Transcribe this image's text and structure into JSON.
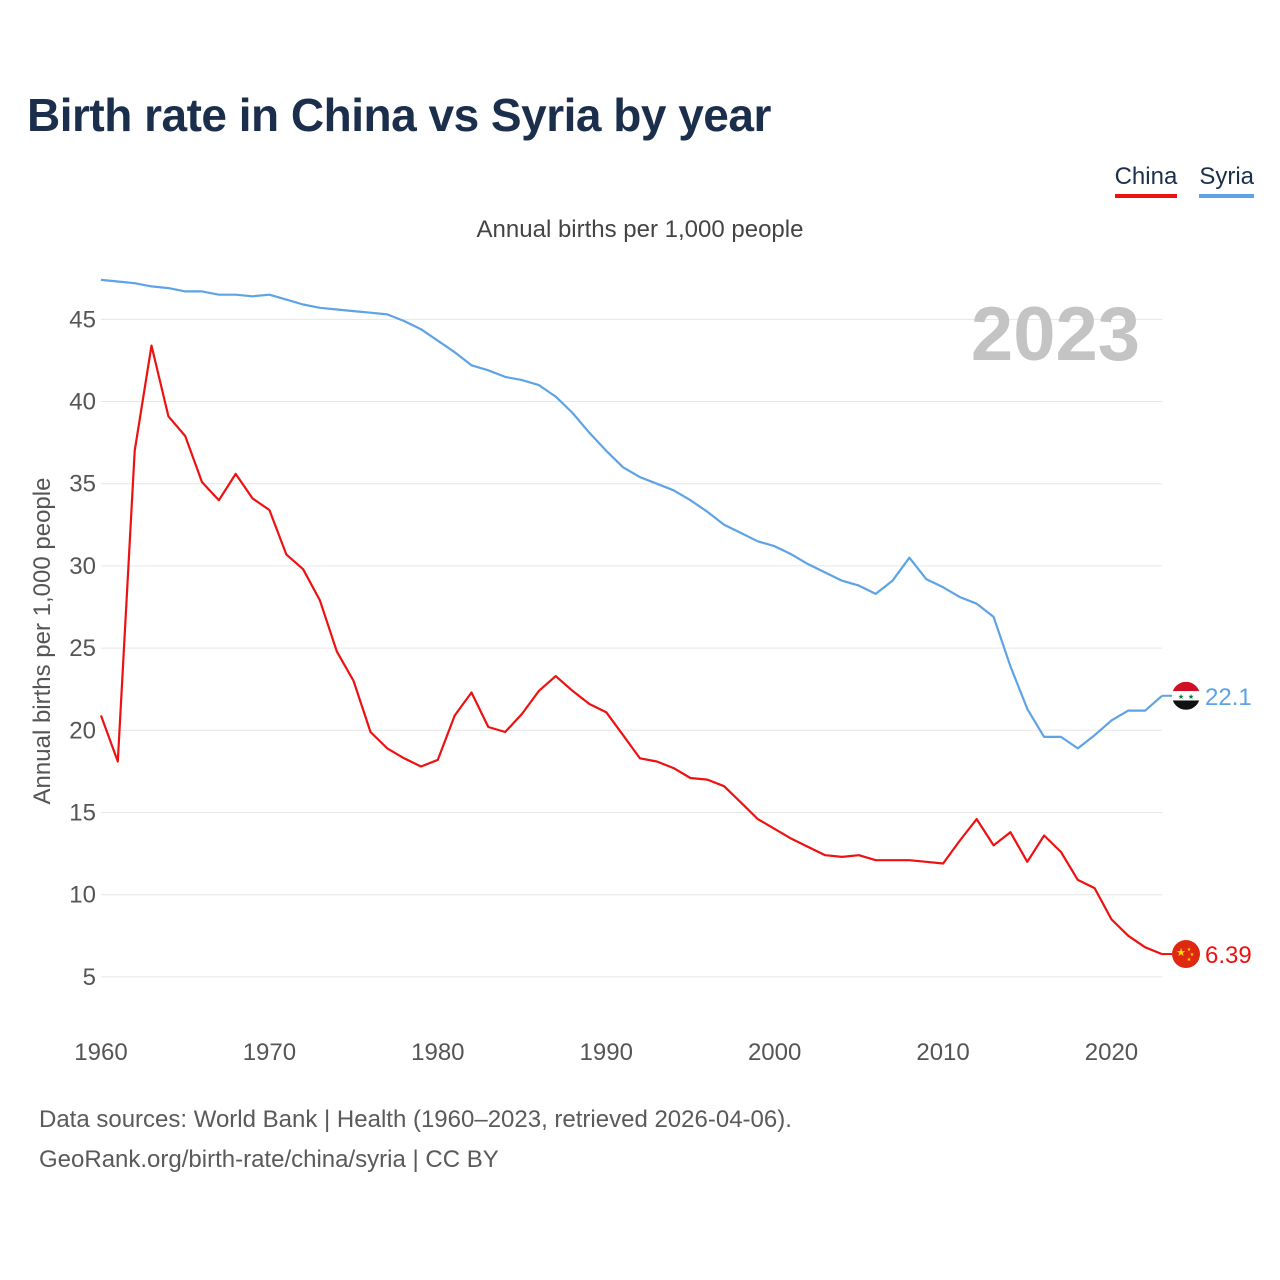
{
  "title": "Birth rate in China vs Syria by year",
  "subtitle": "Annual births per 1,000 people",
  "year_label": "2023",
  "legend": [
    {
      "name": "China",
      "color": "#ee1111"
    },
    {
      "name": "Syria",
      "color": "#5ea3e6"
    }
  ],
  "footer": {
    "line1": "Data sources: World Bank | Health (1960–2023, retrieved 2026-04-06).",
    "line2": "GeoRank.org/birth-rate/china/syria | CC BY"
  },
  "icons": {
    "china": "china-flag-icon",
    "syria": "syria-flag-icon"
  },
  "chart_data": {
    "type": "line",
    "title": "Birth rate in China vs Syria by year",
    "ylabel": "Annual births per 1,000 people",
    "xlabel": "",
    "xlim": [
      1960,
      2023
    ],
    "ylim": [
      2.5,
      48
    ],
    "x_ticks": [
      1960,
      1970,
      1980,
      1990,
      2000,
      2010,
      2020
    ],
    "y_ticks": [
      5,
      10,
      15,
      20,
      25,
      30,
      35,
      40,
      45
    ],
    "grid": true,
    "series": [
      {
        "name": "China",
        "color": "#ee1111",
        "end_label": "6.39",
        "x": [
          1960,
          1961,
          1962,
          1963,
          1964,
          1965,
          1966,
          1967,
          1968,
          1969,
          1970,
          1971,
          1972,
          1973,
          1974,
          1975,
          1976,
          1977,
          1978,
          1979,
          1980,
          1981,
          1982,
          1983,
          1984,
          1985,
          1986,
          1987,
          1988,
          1989,
          1990,
          1991,
          1992,
          1993,
          1994,
          1995,
          1996,
          1997,
          1998,
          1999,
          2000,
          2001,
          2002,
          2003,
          2004,
          2005,
          2006,
          2007,
          2008,
          2009,
          2010,
          2011,
          2012,
          2013,
          2014,
          2015,
          2016,
          2017,
          2018,
          2019,
          2020,
          2021,
          2022,
          2023
        ],
        "values": [
          20.9,
          18.1,
          37.0,
          43.4,
          39.1,
          37.9,
          35.1,
          34.0,
          35.6,
          34.1,
          33.4,
          30.7,
          29.8,
          27.9,
          24.8,
          23.0,
          19.9,
          18.9,
          18.3,
          17.8,
          18.2,
          20.9,
          22.3,
          20.2,
          19.9,
          21.0,
          22.4,
          23.3,
          22.4,
          21.6,
          21.1,
          19.7,
          18.3,
          18.1,
          17.7,
          17.1,
          17.0,
          16.6,
          15.6,
          14.6,
          14.0,
          13.4,
          12.9,
          12.4,
          12.3,
          12.4,
          12.1,
          12.1,
          12.1,
          12.0,
          11.9,
          13.3,
          14.6,
          13.0,
          13.8,
          12.0,
          13.6,
          12.6,
          10.9,
          10.4,
          8.5,
          7.5,
          6.8,
          6.39
        ]
      },
      {
        "name": "Syria",
        "color": "#5ea3e6",
        "end_label": "22.1",
        "x": [
          1960,
          1961,
          1962,
          1963,
          1964,
          1965,
          1966,
          1967,
          1968,
          1969,
          1970,
          1971,
          1972,
          1973,
          1974,
          1975,
          1976,
          1977,
          1978,
          1979,
          1980,
          1981,
          1982,
          1983,
          1984,
          1985,
          1986,
          1987,
          1988,
          1989,
          1990,
          1991,
          1992,
          1993,
          1994,
          1995,
          1996,
          1997,
          1998,
          1999,
          2000,
          2001,
          2002,
          2003,
          2004,
          2005,
          2006,
          2007,
          2008,
          2009,
          2010,
          2011,
          2012,
          2013,
          2014,
          2015,
          2016,
          2017,
          2018,
          2019,
          2020,
          2021,
          2022,
          2023
        ],
        "values": [
          47.4,
          47.3,
          47.2,
          47.0,
          46.9,
          46.7,
          46.7,
          46.5,
          46.5,
          46.4,
          46.5,
          46.2,
          45.9,
          45.7,
          45.6,
          45.5,
          45.4,
          45.3,
          44.9,
          44.4,
          43.7,
          43.0,
          42.2,
          41.9,
          41.5,
          41.3,
          41.0,
          40.3,
          39.3,
          38.1,
          37.0,
          36.0,
          35.4,
          35.0,
          34.6,
          34.0,
          33.3,
          32.5,
          32.0,
          31.5,
          31.2,
          30.7,
          30.1,
          29.6,
          29.1,
          28.8,
          28.3,
          29.1,
          30.5,
          29.2,
          28.7,
          28.1,
          27.7,
          26.9,
          23.9,
          21.3,
          19.6,
          19.6,
          18.9,
          19.7,
          20.6,
          21.2,
          21.2,
          22.1
        ]
      }
    ]
  }
}
